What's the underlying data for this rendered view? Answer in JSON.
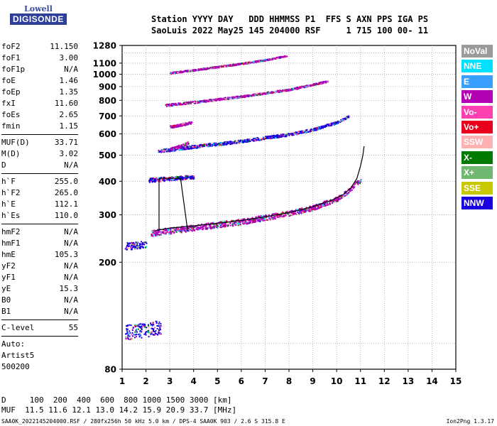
{
  "logo": {
    "line1": "Lowell",
    "line2": "DIGISONDE"
  },
  "header": {
    "line1": "Station YYYY DAY   DDD HHMMSS P1  FFS S AXN PPS IGA PS",
    "line2": "SaoLuis 2022 May25 145 204000 RSF     1 715 100 00- 11"
  },
  "params": [
    {
      "name": "foF2",
      "value": "11.150"
    },
    {
      "name": "foF1",
      "value": "3.00"
    },
    {
      "name": "foF1p",
      "value": "N/A"
    },
    {
      "name": "foE",
      "value": "1.46"
    },
    {
      "name": "foEp",
      "value": "1.35"
    },
    {
      "name": "fxI",
      "value": "11.60"
    },
    {
      "name": "foEs",
      "value": "2.65"
    },
    {
      "name": "fmin",
      "value": "1.15"
    },
    {
      "sep": true
    },
    {
      "name": "MUF(D)",
      "value": "33.71"
    },
    {
      "name": "M(D)",
      "value": "3.02"
    },
    {
      "name": "D",
      "value": "N/A"
    },
    {
      "sep": true
    },
    {
      "name": "h`F",
      "value": "255.0"
    },
    {
      "name": "h`F2",
      "value": "265.0"
    },
    {
      "name": "h`E",
      "value": "112.1"
    },
    {
      "name": "h`Es",
      "value": "110.0"
    },
    {
      "sep": true
    },
    {
      "name": "hmF2",
      "value": "N/A"
    },
    {
      "name": "hmF1",
      "value": "N/A"
    },
    {
      "name": "hmE",
      "value": "105.3"
    },
    {
      "name": "yF2",
      "value": "N/A"
    },
    {
      "name": "yF1",
      "value": "N/A"
    },
    {
      "name": "yE",
      "value": "15.3"
    },
    {
      "name": "B0",
      "value": "N/A"
    },
    {
      "name": "B1",
      "value": "N/A"
    },
    {
      "sep": true
    },
    {
      "name": "C-level",
      "value": "55"
    },
    {
      "sep": true
    },
    {
      "plain": "Auto:"
    },
    {
      "plain": "Artist5"
    },
    {
      "plain": "500200"
    }
  ],
  "legend": [
    {
      "label": "NoVal",
      "color": "#9a9a9a"
    },
    {
      "label": "NNE",
      "color": "#00e0ff"
    },
    {
      "label": "E",
      "color": "#3aa0ff"
    },
    {
      "label": "W",
      "color": "#b400b4"
    },
    {
      "label": "Vo-",
      "color": "#ff40b0"
    },
    {
      "label": "Vo+",
      "color": "#e8001c"
    },
    {
      "label": "SSW",
      "color": "#ffb0b0"
    },
    {
      "label": "X-",
      "color": "#007a00"
    },
    {
      "label": "X+",
      "color": "#70b870"
    },
    {
      "label": "SSE",
      "color": "#c8c800"
    },
    {
      "label": "NNW",
      "color": "#1a00e0"
    }
  ],
  "mufTable": {
    "line1": "D     100  200  400  600  800 1000 1500 3000 [km]",
    "line2": "MUF  11.5 11.6 12.1 13.0 14.2 15.9 20.9 33.7 [MHz]"
  },
  "footer": {
    "left": "SAA0K_2022145204000.RSF / 280fx256h 50 kHz 5.0 km / DPS-4 SAA0K 903 / 2.6 S 315.8 E",
    "right": "Ion2Png 1.3.17"
  },
  "chart_data": {
    "type": "scatter",
    "title": "",
    "xlabel": "",
    "ylabel": "",
    "xlim": [
      1,
      15
    ],
    "ylim": [
      80,
      1280
    ],
    "xticks": [
      1,
      2,
      3,
      4,
      5,
      6,
      7,
      8,
      9,
      10,
      11,
      12,
      13,
      14,
      15
    ],
    "yticks": [
      80,
      200,
      300,
      400,
      500,
      600,
      700,
      800,
      900,
      1000,
      1100,
      1280
    ],
    "grid": true,
    "scale": "log-height",
    "trace": {
      "name": "profile",
      "points": [
        [
          2.4,
          262
        ],
        [
          3.0,
          268
        ],
        [
          4.0,
          273
        ],
        [
          5.0,
          279
        ],
        [
          6.0,
          286
        ],
        [
          7.0,
          295
        ],
        [
          8.0,
          306
        ],
        [
          9.0,
          322
        ],
        [
          9.8,
          340
        ],
        [
          10.3,
          358
        ],
        [
          10.6,
          378
        ],
        [
          10.85,
          410
        ],
        [
          11.0,
          455
        ],
        [
          11.1,
          500
        ],
        [
          11.15,
          540
        ]
      ]
    },
    "trace_e": {
      "name": "E/Es",
      "points": [
        [
          2.55,
          262
        ],
        [
          2.55,
          410
        ],
        [
          3.45,
          410
        ],
        [
          3.75,
          262
        ]
      ]
    },
    "echo_traces": [
      {
        "name": "F2 main",
        "color": "#b400b4",
        "points": [
          [
            2.2,
            258
          ],
          [
            4,
            270
          ],
          [
            6,
            284
          ],
          [
            8,
            305
          ],
          [
            9,
            320
          ],
          [
            10,
            345
          ],
          [
            10.5,
            370
          ],
          [
            10.8,
            395
          ],
          [
            11.0,
            405
          ]
        ]
      },
      {
        "name": "F2 2-hop",
        "color": "#1a00e0",
        "points": [
          [
            2.5,
            520
          ],
          [
            4,
            540
          ],
          [
            6,
            566
          ],
          [
            8,
            600
          ],
          [
            9,
            625
          ],
          [
            10,
            665
          ],
          [
            10.5,
            700
          ]
        ]
      },
      {
        "name": "F2 3-hop",
        "color": "#b400b4",
        "points": [
          [
            2.8,
            770
          ],
          [
            4,
            790
          ],
          [
            6,
            830
          ],
          [
            8,
            880
          ],
          [
            9,
            920
          ],
          [
            9.6,
            945
          ]
        ]
      },
      {
        "name": "F2 4-hop",
        "color": "#b400b4",
        "points": [
          [
            3.0,
            1015
          ],
          [
            4,
            1040
          ],
          [
            5,
            1070
          ],
          [
            6,
            1100
          ],
          [
            7,
            1135
          ],
          [
            7.9,
            1175
          ]
        ]
      },
      {
        "name": "Es",
        "color": "#1a00e0",
        "points": [
          [
            1.1,
            110
          ],
          [
            2.0,
            113
          ],
          [
            2.6,
            115
          ]
        ]
      },
      {
        "name": "Es 2-hop",
        "color": "#1a00e0",
        "points": [
          [
            1.1,
            230
          ],
          [
            1.6,
            232
          ],
          [
            2.0,
            235
          ]
        ]
      },
      {
        "name": "Es cloud",
        "color": "#1a00e0",
        "points": [
          [
            2.1,
            405
          ],
          [
            2.8,
            410
          ],
          [
            3.6,
            415
          ],
          [
            4.0,
            418
          ]
        ]
      },
      {
        "name": "Es mid",
        "color": "#b400b4",
        "points": [
          [
            3.0,
            530
          ],
          [
            3.5,
            545
          ],
          [
            3.8,
            560
          ]
        ]
      },
      {
        "name": "Es high",
        "color": "#b400b4",
        "points": [
          [
            3.0,
            640
          ],
          [
            3.6,
            655
          ],
          [
            3.9,
            665
          ]
        ]
      }
    ],
    "legend_position": "right"
  }
}
